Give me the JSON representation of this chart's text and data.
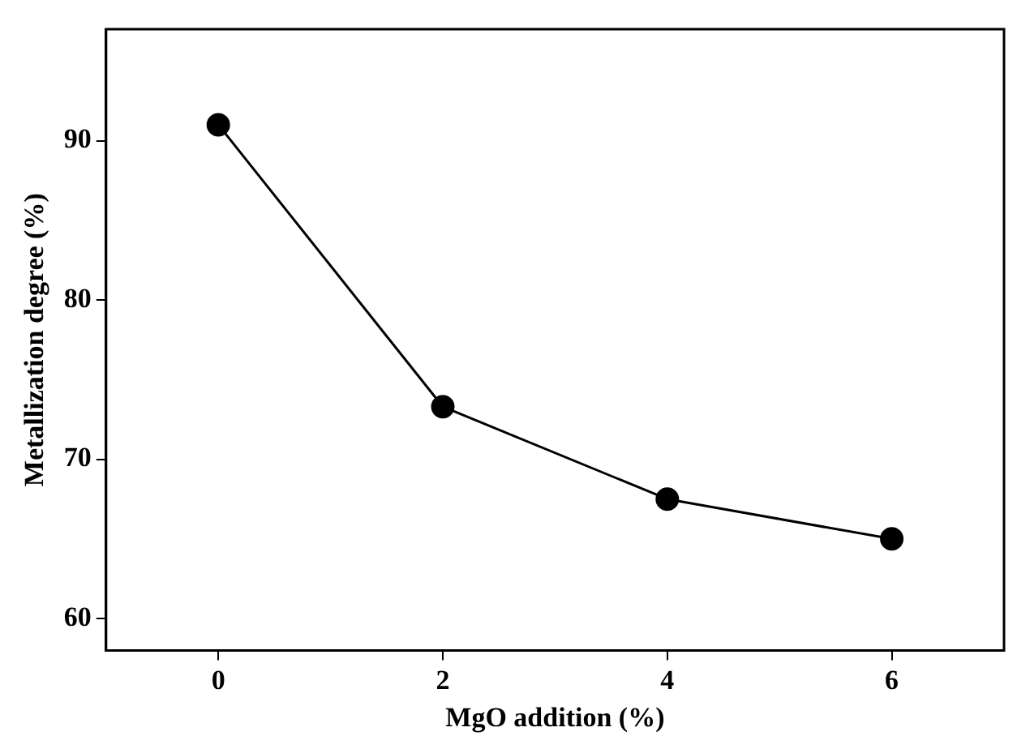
{
  "chart_data": {
    "type": "line",
    "xlabel": "MgO addition (%)",
    "ylabel": "Metallization degree (%)",
    "x": [
      0,
      2,
      4,
      6
    ],
    "series": [
      {
        "color": "#000000",
        "values": [
          91,
          73.3,
          67.5,
          65
        ]
      }
    ],
    "xlim": [
      -1,
      7
    ],
    "xticks": [
      0,
      2,
      4,
      6
    ],
    "ylim": [
      58,
      97
    ],
    "yticks": [
      60,
      70,
      80,
      90
    ],
    "grid": false,
    "legend": false,
    "marker": "circle",
    "line_style": "solid"
  }
}
